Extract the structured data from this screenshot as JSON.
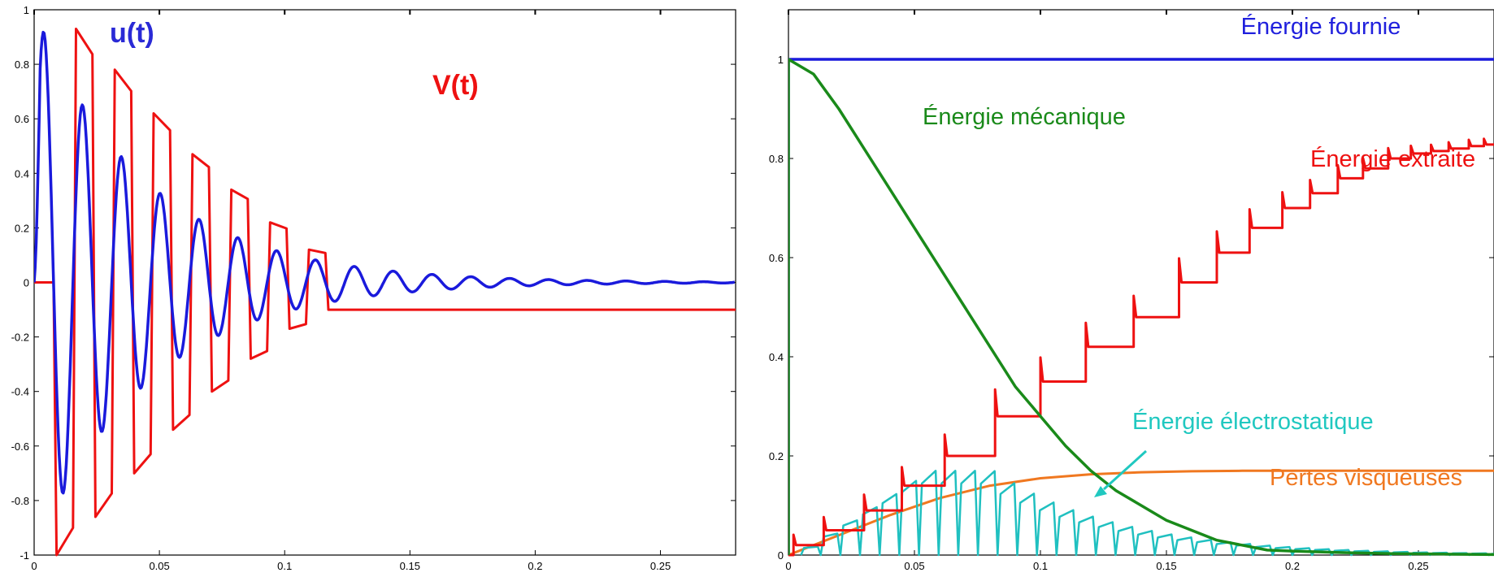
{
  "chart_data": [
    {
      "type": "line",
      "title": "",
      "xlabel": "",
      "ylabel": "",
      "xlim": [
        0,
        0.28
      ],
      "ylim": [
        -1,
        1
      ],
      "xticks": [
        0,
        0.05,
        0.1,
        0.15,
        0.2,
        0.25
      ],
      "xtick_labels": [
        "0",
        "0.05",
        "0.1",
        "0.15",
        "0.2",
        "0.25"
      ],
      "yticks": [
        -1,
        -0.8,
        -0.6,
        -0.4,
        -0.2,
        0,
        0.2,
        0.4,
        0.6,
        0.8,
        1
      ],
      "ytick_labels": [
        "-1",
        "-0.8",
        "-0.6",
        "-0.4",
        "-0.2",
        "0",
        "0.2",
        "0.4",
        "0.6",
        "0.8",
        "1"
      ],
      "grid": false,
      "annotations": [
        {
          "text": "u(t)",
          "color": "#2a2ad6",
          "series": "u"
        },
        {
          "text": "V(t)",
          "color": "#ee1111",
          "series": "V"
        }
      ],
      "series": [
        {
          "name": "u(t)",
          "color": "#1a1adc",
          "model": "damped_sine",
          "amplitude": 1,
          "period": 0.0155,
          "decay_time": 0.045
        },
        {
          "name": "V(t)",
          "color": "#ee1111",
          "model": "switched_square",
          "peaks": [
            1,
            0.93,
            0.86,
            0.78,
            0.7,
            0.62,
            0.54,
            0.47,
            0.4,
            0.34,
            0.28,
            0.22,
            0.17,
            0.12,
            0.1
          ]
        }
      ]
    },
    {
      "type": "line",
      "title": "",
      "xlabel": "",
      "ylabel": "",
      "xlim": [
        0,
        0.28
      ],
      "ylim": [
        0,
        1.1
      ],
      "xticks": [
        0,
        0.05,
        0.1,
        0.15,
        0.2,
        0.25
      ],
      "xtick_labels": [
        "0",
        "0.05",
        "0.1",
        "0.15",
        "0.2",
        "0.25"
      ],
      "yticks": [
        0,
        0.2,
        0.4,
        0.6,
        0.8,
        1
      ],
      "ytick_labels": [
        "0",
        "0.2",
        "0.4",
        "0.6",
        "0.8",
        "1"
      ],
      "grid": false,
      "annotations": [
        {
          "text": "Énergie fournie",
          "color": "#2020dd"
        },
        {
          "text": "Énergie mécanique",
          "color": "#1a8a1a"
        },
        {
          "text": "Énergie extraite",
          "color": "#ee1111"
        },
        {
          "text": "Énergie électrostatique",
          "color": "#20c8c0",
          "arrow": true
        },
        {
          "text": "Pertes visqueuses",
          "color": "#f07820"
        }
      ],
      "series": [
        {
          "name": "Énergie fournie",
          "color": "#1a1adc",
          "x": [
            0,
            0.28
          ],
          "y": [
            1,
            1
          ]
        },
        {
          "name": "Énergie mécanique",
          "color": "#1a8a1a",
          "x": [
            0,
            0.01,
            0.02,
            0.03,
            0.04,
            0.05,
            0.06,
            0.07,
            0.08,
            0.09,
            0.1,
            0.11,
            0.12,
            0.13,
            0.14,
            0.15,
            0.16,
            0.17,
            0.18,
            0.19,
            0.2,
            0.22,
            0.24,
            0.26,
            0.28
          ],
          "y": [
            1,
            0.97,
            0.9,
            0.82,
            0.74,
            0.66,
            0.58,
            0.5,
            0.42,
            0.34,
            0.28,
            0.22,
            0.17,
            0.13,
            0.1,
            0.07,
            0.05,
            0.03,
            0.02,
            0.01,
            0.008,
            0.005,
            0.003,
            0.002,
            0.001
          ]
        },
        {
          "name": "Énergie extraite",
          "color": "#ee1111",
          "steps": [
            0.002,
            0.014,
            0.03,
            0.045,
            0.062,
            0.082,
            0.1,
            0.118,
            0.137,
            0.155,
            0.17,
            0.183,
            0.196,
            0.207,
            0.218,
            0.228,
            0.238,
            0.247,
            0.255,
            0.262,
            0.27,
            0.276
          ],
          "y": [
            0.004,
            0.02,
            0.05,
            0.09,
            0.14,
            0.2,
            0.28,
            0.35,
            0.42,
            0.48,
            0.55,
            0.61,
            0.66,
            0.7,
            0.73,
            0.76,
            0.78,
            0.8,
            0.81,
            0.815,
            0.82,
            0.825,
            0.828
          ]
        },
        {
          "name": "Énergie électrostatique",
          "color": "#20c0c0",
          "envelope_peak": 0.17
        },
        {
          "name": "Pertes visqueuses",
          "color": "#f07820",
          "x": [
            0,
            0.02,
            0.04,
            0.06,
            0.08,
            0.1,
            0.12,
            0.14,
            0.16,
            0.18,
            0.2,
            0.24,
            0.28
          ],
          "y": [
            0,
            0.04,
            0.08,
            0.115,
            0.14,
            0.155,
            0.163,
            0.167,
            0.169,
            0.17,
            0.17,
            0.17,
            0.17
          ]
        }
      ]
    }
  ]
}
